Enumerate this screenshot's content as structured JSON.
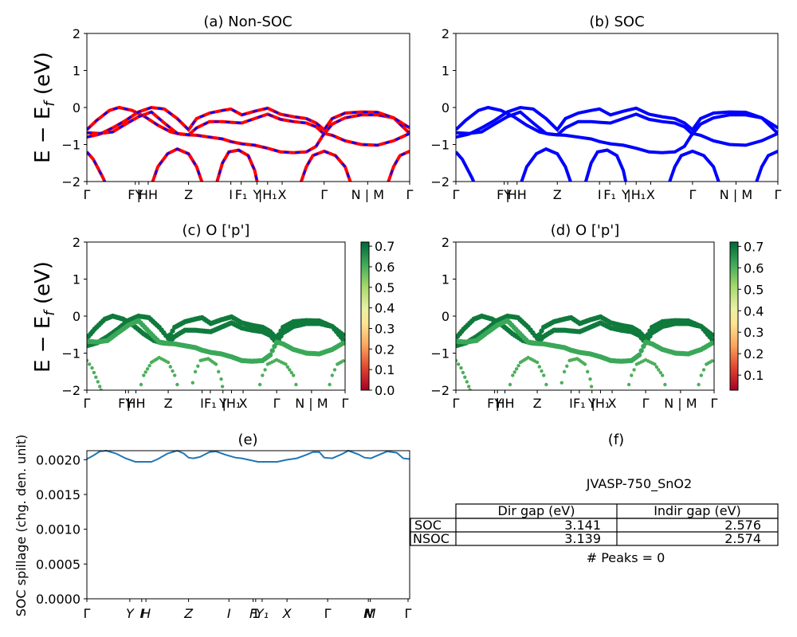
{
  "figure_id": "JVASP-750_SnO2",
  "chart_data": [
    {
      "panel": "a",
      "type": "line",
      "title": "(a) Non-SOC",
      "ylabel": "E − E_f (eV)",
      "ylim": [
        -2,
        2
      ],
      "yticks": [
        -2,
        -1,
        0,
        1,
        2
      ],
      "xticks": [
        {
          "label": "Γ",
          "pos": 0.0
        },
        {
          "label": "FY",
          "pos": 0.15
        },
        {
          "label": "|",
          "pos": 0.161
        },
        {
          "label": "HH",
          "pos": 0.181
        },
        {
          "label": "Z",
          "pos": 0.315
        },
        {
          "label": "I",
          "pos": 0.446
        },
        {
          "label": "F₁",
          "pos": 0.478
        },
        {
          "label": "Y",
          "pos": 0.527
        },
        {
          "label": "|H₁",
          "pos": 0.558
        },
        {
          "label": "X",
          "pos": 0.605
        },
        {
          "label": "Γ",
          "pos": 0.735
        },
        {
          "label": "N | M",
          "pos": 0.87
        },
        {
          "label": "Γ",
          "pos": 1.0
        }
      ],
      "series": [
        {
          "color": "#ff0000",
          "dash_color": "#0000ff",
          "style": "solid red with blue dashes",
          "values": [
            [
              [
                0,
                -0.6
              ],
              [
                0.03,
                -0.35
              ],
              [
                0.06,
                -0.1
              ],
              [
                0.1,
                0.0
              ],
              [
                0.14,
                -0.05
              ],
              [
                0.18,
                -0.45
              ],
              [
                0.22,
                -0.6
              ],
              [
                0.26,
                -0.62
              ],
              [
                0.3,
                -0.8
              ],
              [
                0.315,
                -1.05
              ]
            ],
            [
              [
                0,
                -0.8
              ],
              [
                0.04,
                -0.7
              ],
              [
                0.08,
                -0.55
              ],
              [
                0.12,
                -0.35
              ],
              [
                0.16,
                -0.15
              ],
              [
                0.2,
                -0.02
              ],
              [
                0.24,
                -0.05
              ],
              [
                0.28,
                -0.35
              ],
              [
                0.315,
                -0.6
              ],
              [
                0.34,
                -0.35
              ],
              [
                0.38,
                -0.28
              ],
              [
                0.42,
                -0.3
              ],
              [
                0.46,
                -0.32
              ],
              [
                0.5,
                -0.3
              ],
              [
                0.54,
                -0.38
              ],
              [
                0.58,
                -0.4
              ],
              [
                0.62,
                -0.4
              ],
              [
                0.66,
                -0.45
              ],
              [
                0.7,
                -0.55
              ],
              [
                0.735,
                -0.75
              ],
              [
                0.77,
                -0.3
              ],
              [
                0.82,
                -0.15
              ],
              [
                0.87,
                -0.12
              ],
              [
                0.92,
                -0.15
              ],
              [
                0.96,
                -0.3
              ],
              [
                1.0,
                -0.55
              ]
            ]
          ]
        }
      ]
    },
    {
      "panel": "b",
      "type": "line",
      "title": "(b) SOC",
      "ylim": [
        -2,
        2
      ],
      "yticks": [
        -2,
        -1,
        0,
        1,
        2
      ]
    },
    {
      "panel": "c",
      "type": "scatter",
      "title": "(c)  O ['p']",
      "ylabel": "E − E_f (eV)",
      "ylim": [
        -2,
        2
      ],
      "colorbar": {
        "ticks": [
          "0.0",
          "0.1",
          "0.2",
          "0.3",
          "0.4",
          "0.5",
          "0.6",
          "0.7"
        ],
        "range": [
          0,
          0.72
        ],
        "cmap": "RdYlGn"
      }
    },
    {
      "panel": "d",
      "type": "scatter",
      "title": "(d) O ['p']",
      "ylim": [
        -2,
        2
      ],
      "colorbar": {
        "ticks": [
          "0.1",
          "0.2",
          "0.3",
          "0.4",
          "0.5",
          "0.6",
          "0.7"
        ],
        "range": [
          0.03,
          0.72
        ],
        "cmap": "RdYlGn"
      }
    },
    {
      "panel": "e",
      "type": "line",
      "title": "(e)",
      "ylabel": "SOC spillage (chg. den. unit)",
      "ylim": [
        0,
        0.00213
      ],
      "yticks": [
        "0.0000",
        "0.0005",
        "0.0010",
        "0.0015",
        "0.0020"
      ],
      "xticks": [
        "Γ",
        "Y",
        "I",
        "H",
        "Z",
        "I",
        "F",
        "1",
        "Y₁",
        "X",
        "Γ",
        "N",
        "M",
        "Γ"
      ],
      "values": [
        [
          0.0,
          0.00201
        ],
        [
          0.02,
          0.00206
        ],
        [
          0.04,
          0.00212
        ],
        [
          0.06,
          0.00213
        ],
        [
          0.09,
          0.00209
        ],
        [
          0.12,
          0.00202
        ],
        [
          0.15,
          0.00197
        ],
        [
          0.18,
          0.00197
        ],
        [
          0.2,
          0.00197
        ],
        [
          0.22,
          0.00201
        ],
        [
          0.25,
          0.00209
        ],
        [
          0.28,
          0.00213
        ],
        [
          0.3,
          0.00209
        ],
        [
          0.315,
          0.00203
        ],
        [
          0.33,
          0.00202
        ],
        [
          0.35,
          0.00204
        ],
        [
          0.38,
          0.00211
        ],
        [
          0.4,
          0.00212
        ],
        [
          0.43,
          0.00207
        ],
        [
          0.46,
          0.00203
        ],
        [
          0.48,
          0.00202
        ],
        [
          0.5,
          0.002
        ],
        [
          0.53,
          0.00197
        ],
        [
          0.57,
          0.00197
        ],
        [
          0.59,
          0.00197
        ],
        [
          0.62,
          0.002
        ],
        [
          0.65,
          0.00202
        ],
        [
          0.68,
          0.00207
        ],
        [
          0.7,
          0.00211
        ],
        [
          0.72,
          0.00211
        ],
        [
          0.735,
          0.00203
        ],
        [
          0.76,
          0.00202
        ],
        [
          0.79,
          0.00208
        ],
        [
          0.81,
          0.00213
        ],
        [
          0.84,
          0.00208
        ],
        [
          0.86,
          0.00203
        ],
        [
          0.88,
          0.00202
        ],
        [
          0.9,
          0.00206
        ],
        [
          0.93,
          0.00212
        ],
        [
          0.96,
          0.0021
        ],
        [
          0.98,
          0.00202
        ],
        [
          1.0,
          0.00201
        ]
      ]
    },
    {
      "panel": "f",
      "type": "table",
      "title": "(f)",
      "subtitle": "JVASP-750_SnO2",
      "columns": [
        "",
        "Dir gap (eV)",
        "Indir gap (eV)"
      ],
      "rows": [
        [
          "SOC",
          "3.141",
          "2.576"
        ],
        [
          "NSOC",
          "3.139",
          "2.574"
        ]
      ],
      "footer": "# Peaks = 0"
    }
  ]
}
